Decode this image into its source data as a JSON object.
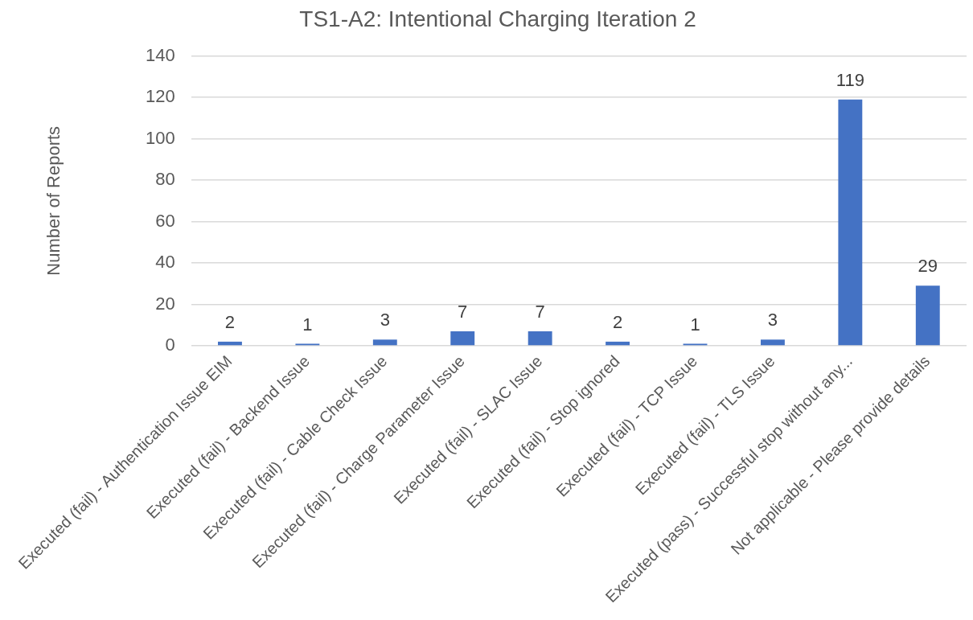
{
  "chart_data": {
    "type": "bar",
    "title": "TS1-A2: Intentional Charging Iteration 2",
    "ylabel": "Number of Reports",
    "categories": [
      "Executed (fail) - Authentication Issue EIM",
      "Executed (fail) - Backend Issue",
      "Executed (fail) - Cable Check Issue",
      "Executed (fail) - Charge Parameter Issue",
      "Executed (fail) - SLAC Issue",
      "Executed (fail) - Stop ignored",
      "Executed (fail) - TCP Issue",
      "Executed (fail) - TLS Issue",
      "Executed (pass) - Successful stop without any...",
      "Not applicable - Please provide details"
    ],
    "values": [
      2,
      1,
      3,
      7,
      7,
      2,
      1,
      3,
      119,
      29
    ],
    "color": "#4472c4",
    "ylim": [
      0,
      140
    ],
    "yticks": [
      0,
      20,
      40,
      60,
      80,
      100,
      120,
      140
    ],
    "grid": "y",
    "data_labels": true
  }
}
